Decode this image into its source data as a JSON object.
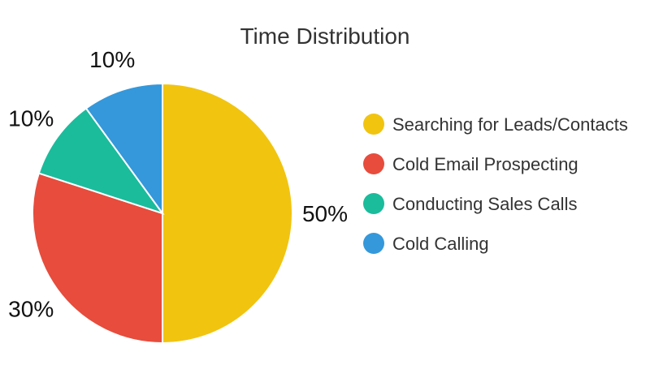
{
  "chart_data": {
    "type": "pie",
    "title": "Time Distribution",
    "categories": [
      "Searching for Leads/Contacts",
      "Cold Email Prospecting",
      "Conducting Sales Calls",
      "Cold Calling"
    ],
    "values": [
      50,
      30,
      10,
      10
    ],
    "value_labels": [
      "50%",
      "30%",
      "10%",
      "10%"
    ],
    "colors": [
      "#F1C40F",
      "#E74C3C",
      "#1ABC9C",
      "#3498DB"
    ],
    "legend_position": "right"
  }
}
